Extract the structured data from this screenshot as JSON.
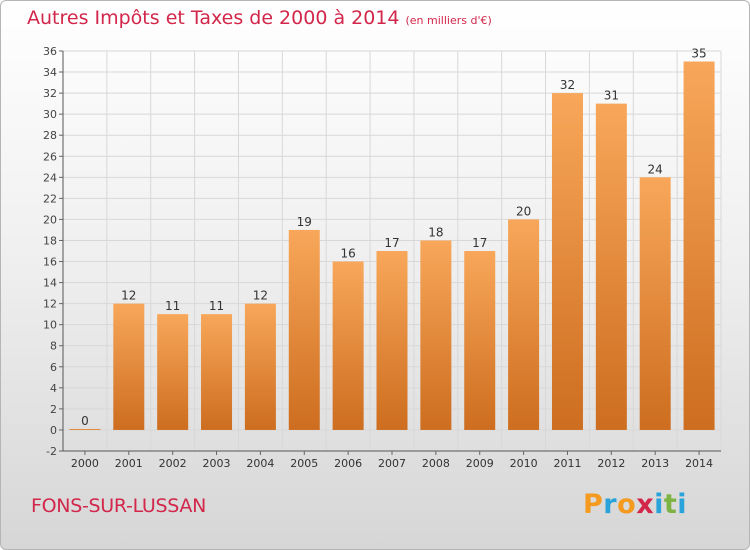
{
  "header": {
    "title": "Autres Impôts et Taxes de 2000 à 2014",
    "unit": "(en milliers d'€)"
  },
  "footer": {
    "commune": "FONS-SUR-LUSSAN",
    "logo_text": "Proxiti"
  },
  "colors": {
    "title": "#d2264a",
    "bar_light": "#f8a75a",
    "bar_dark": "#cd6d1f",
    "logo": [
      "#f39a1f",
      "#2aa3da",
      "#f39a1f",
      "#d2264a",
      "#2aa3da",
      "#7cb342",
      "#2aa3da"
    ]
  },
  "chart_data": {
    "type": "bar",
    "title": "Autres Impôts et Taxes de 2000 à 2014",
    "subtitle": "(en milliers d'€)",
    "xlabel": "",
    "ylabel": "",
    "categories": [
      "2000",
      "2001",
      "2002",
      "2003",
      "2004",
      "2005",
      "2006",
      "2007",
      "2008",
      "2009",
      "2010",
      "2011",
      "2012",
      "2013",
      "2014"
    ],
    "values": [
      0,
      12,
      11,
      11,
      12,
      19,
      16,
      17,
      18,
      17,
      20,
      32,
      31,
      24,
      35
    ],
    "ylim": [
      -2,
      36
    ],
    "yticks": [
      -2,
      0,
      2,
      4,
      6,
      8,
      10,
      12,
      14,
      16,
      18,
      20,
      22,
      24,
      26,
      28,
      30,
      32,
      34,
      36
    ],
    "grid": true,
    "legend": "none"
  }
}
